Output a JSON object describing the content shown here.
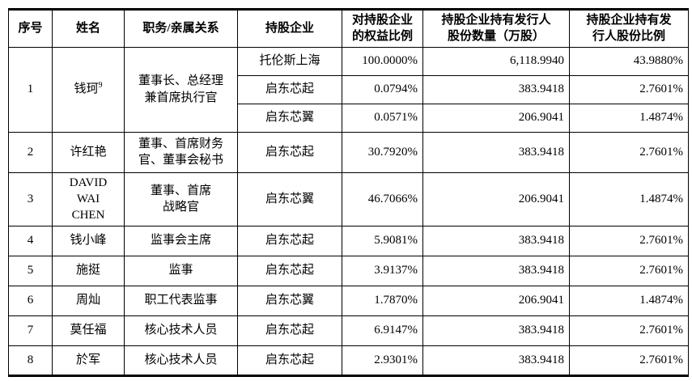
{
  "table": {
    "headers": {
      "serial": "序号",
      "name": "姓名",
      "position": "职务/亲属关系",
      "enterprise": "持股企业",
      "equity_ratio": "对持股企业\n的权益比例",
      "share_count": "持股企业持有发行人\n股份数量（万股）",
      "share_ratio": "持股企业持有发\n行人股份比例"
    },
    "rows": [
      {
        "no": "1",
        "name": "钱珂",
        "name_sup": "9",
        "position": "董事长、总经理\n兼首席执行官",
        "holdings": [
          {
            "enterprise": "托伦斯上海",
            "equity": "100.0000%",
            "shares": "6,118.9940",
            "ratio": "43.9880%"
          },
          {
            "enterprise": "启东芯起",
            "equity": "0.0794%",
            "shares": "383.9418",
            "ratio": "2.7601%"
          },
          {
            "enterprise": "启东芯翼",
            "equity": "0.0571%",
            "shares": "206.9041",
            "ratio": "1.4874%"
          }
        ]
      },
      {
        "no": "2",
        "name": "许红艳",
        "position": "董事、首席财务\n官、董事会秘书",
        "holdings": [
          {
            "enterprise": "启东芯起",
            "equity": "30.7920%",
            "shares": "383.9418",
            "ratio": "2.7601%"
          }
        ]
      },
      {
        "no": "3",
        "name": "DAVID\nWAI\nCHEN",
        "position": "董事、首席\n战略官",
        "holdings": [
          {
            "enterprise": "启东芯翼",
            "equity": "46.7066%",
            "shares": "206.9041",
            "ratio": "1.4874%"
          }
        ]
      },
      {
        "no": "4",
        "name": "钱小峰",
        "position": "监事会主席",
        "holdings": [
          {
            "enterprise": "启东芯起",
            "equity": "5.9081%",
            "shares": "383.9418",
            "ratio": "2.7601%"
          }
        ]
      },
      {
        "no": "5",
        "name": "施挺",
        "position": "监事",
        "holdings": [
          {
            "enterprise": "启东芯起",
            "equity": "3.9137%",
            "shares": "383.9418",
            "ratio": "2.7601%"
          }
        ]
      },
      {
        "no": "6",
        "name": "周灿",
        "position": "职工代表监事",
        "holdings": [
          {
            "enterprise": "启东芯翼",
            "equity": "1.7870%",
            "shares": "206.9041",
            "ratio": "1.4874%"
          }
        ]
      },
      {
        "no": "7",
        "name": "莫任福",
        "position": "核心技术人员",
        "holdings": [
          {
            "enterprise": "启东芯起",
            "equity": "6.9147%",
            "shares": "383.9418",
            "ratio": "2.7601%"
          }
        ]
      },
      {
        "no": "8",
        "name": "於军",
        "position": "核心技术人员",
        "holdings": [
          {
            "enterprise": "启东芯起",
            "equity": "2.9301%",
            "shares": "383.9418",
            "ratio": "2.7601%"
          }
        ]
      }
    ]
  }
}
